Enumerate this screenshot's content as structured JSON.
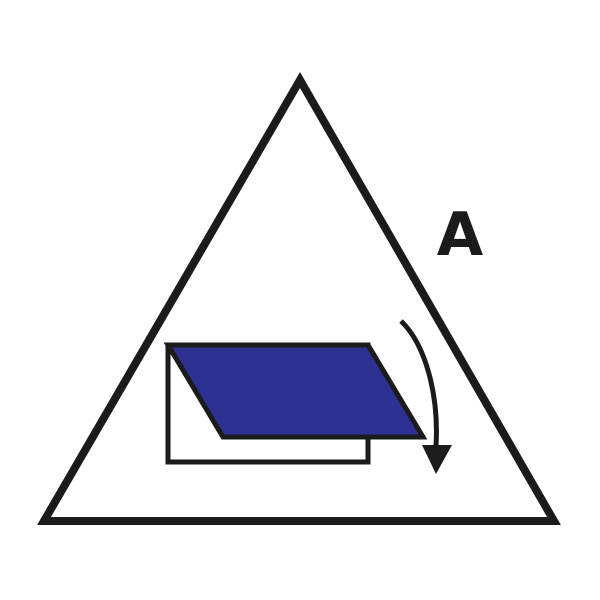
{
  "sign": {
    "letter": "A",
    "colors": {
      "background": "#ffffff",
      "outline": "#1b1b1b",
      "panel_fill": "#2d3192"
    },
    "icons": {
      "frame": "triangle-outline",
      "opening": "window-frame",
      "sash": "open-window-sash-icon",
      "motion": "curved-arrow-down-icon"
    }
  }
}
